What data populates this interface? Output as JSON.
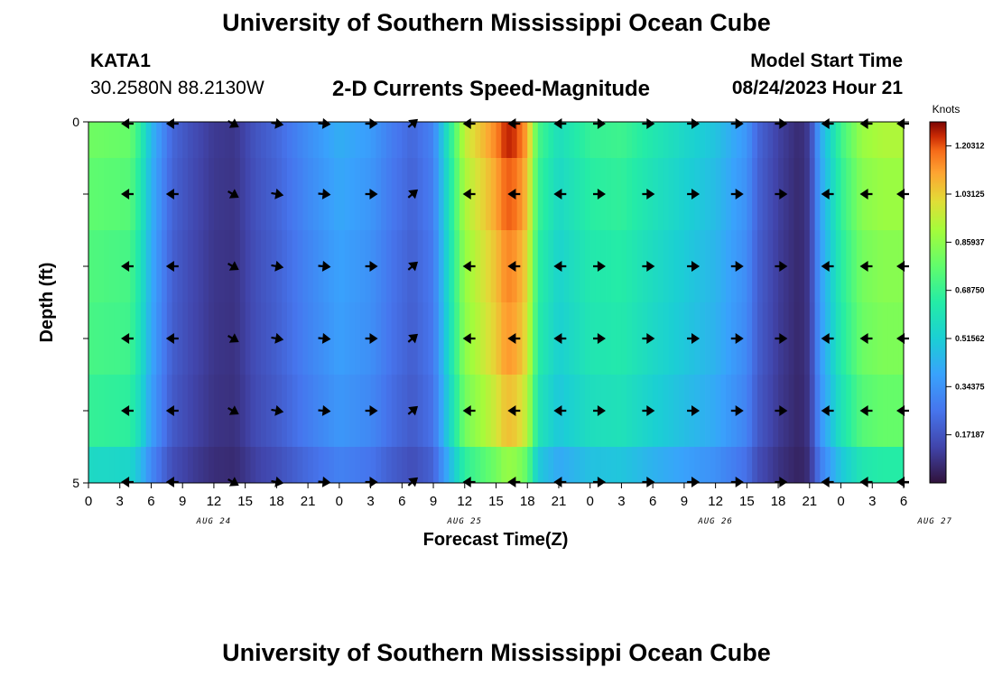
{
  "header": {
    "title": "University of Southern Mississippi Ocean Cube",
    "station": "KATA1",
    "coords": "30.2580N  88.2130W",
    "chart_title": "2-D Currents Speed-Magnitude",
    "model_start_label": "Model Start Time",
    "model_start_value": "08/24/2023 Hour 21"
  },
  "footer": {
    "title": "University of Southern Mississippi Ocean Cube"
  },
  "chart_data": {
    "type": "heatmap",
    "title": "2-D Currents Speed-Magnitude",
    "xlabel": "Forecast Time(Z)",
    "ylabel": "Depth (ft)",
    "y_ticks": [
      "0",
      "5"
    ],
    "ylim": [
      0,
      5
    ],
    "x_hours": [
      0,
      3,
      6,
      9,
      12,
      15,
      18,
      21,
      0,
      3,
      6,
      9,
      12,
      15,
      18,
      21,
      0,
      3,
      6,
      9,
      12,
      15,
      18,
      21,
      0,
      3,
      6
    ],
    "x_tick_labels": [
      "0",
      "3",
      "6",
      "9",
      "12",
      "15",
      "18",
      "21",
      "0",
      "3",
      "6",
      "9",
      "12",
      "15",
      "18",
      "21",
      "0",
      "3",
      "6",
      "9",
      "12",
      "15",
      "18",
      "21",
      "0",
      "3",
      "6"
    ],
    "day_labels": [
      {
        "label": "AUG 24",
        "hour": 12
      },
      {
        "label": "AUG 25",
        "hour": 36
      },
      {
        "label": "AUG 26",
        "hour": 60
      },
      {
        "label": "AUG 27",
        "hour": 81
      }
    ],
    "hour_range": [
      0,
      78
    ],
    "depth_layers": 5,
    "colorbar": {
      "title": "Knots",
      "min": 0.0,
      "max": 1.2891,
      "tick_values": [
        0.171875,
        0.34375,
        0.515625,
        0.6875,
        0.859375,
        1.03125,
        1.203125
      ],
      "tick_labels": [
        "0.17187",
        "0.34375",
        "0.51562",
        "0.68750",
        "0.85937",
        "1.03125",
        "1.20312"
      ]
    },
    "speed_profile": {
      "hours": [
        0,
        4,
        5,
        6,
        7,
        8,
        10,
        12,
        14,
        16,
        18,
        21,
        24,
        27,
        29,
        31,
        33,
        36,
        39,
        40,
        41,
        42,
        43,
        45,
        48,
        51,
        54,
        57,
        60,
        63,
        64,
        66,
        68,
        69,
        70,
        72,
        74,
        76,
        78
      ],
      "speed": [
        0.8,
        0.78,
        0.65,
        0.45,
        0.33,
        0.22,
        0.15,
        0.1,
        0.09,
        0.17,
        0.22,
        0.33,
        0.42,
        0.37,
        0.28,
        0.22,
        0.3,
        0.95,
        1.15,
        1.25,
        1.22,
        1.1,
        0.72,
        0.58,
        0.68,
        0.7,
        0.62,
        0.55,
        0.48,
        0.35,
        0.22,
        0.12,
        0.06,
        0.11,
        0.4,
        0.7,
        0.88,
        0.92,
        0.92
      ]
    },
    "depth_factor": [
      1.0,
      0.96,
      0.92,
      0.9,
      0.85,
      0.7
    ],
    "arrows": {
      "hours": [
        3.8,
        8.1,
        13.8,
        18,
        22.5,
        27,
        31,
        36.5,
        40.8,
        45.2,
        48.8,
        53.5,
        57.8,
        62,
        66.2,
        70.8,
        74.5,
        78
      ],
      "angles_deg": [
        180,
        180,
        330,
        350,
        355,
        0,
        40,
        180,
        180,
        180,
        0,
        0,
        0,
        0,
        0,
        180,
        180,
        180
      ]
    }
  }
}
